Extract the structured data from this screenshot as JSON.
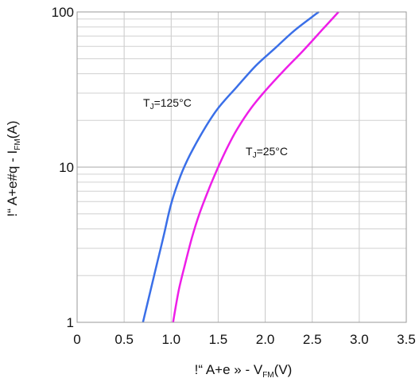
{
  "chart_data": {
    "type": "line",
    "x_scale": "linear",
    "y_scale": "log",
    "xlim": [
      0,
      3.5
    ],
    "ylim": [
      1,
      100
    ],
    "grid": true,
    "x_ticks": [
      "0",
      "0.5",
      "1.0",
      "1.5",
      "2.0",
      "2.5",
      "3.0",
      "3.5"
    ],
    "y_ticks": [
      "1",
      "10",
      "100"
    ],
    "xlabel": {
      "prefix": "!“   A+e » - ",
      "main": "V",
      "sub": "FM",
      "suffix": "(V)"
    },
    "ylabel": {
      "prefix": "!“   A+e#q - ",
      "main": "I",
      "sub": "FM",
      "suffix": "(A)"
    },
    "series": [
      {
        "name": "TJ=125°C",
        "label": {
          "main": "T",
          "sub": "J",
          "rest": "=125°C"
        },
        "color": "#3a6fe8",
        "x": [
          0.7,
          0.78,
          0.85,
          0.92,
          1.0,
          1.1,
          1.2,
          1.35,
          1.5,
          1.7,
          1.9,
          2.1,
          2.3,
          2.5,
          2.57
        ],
        "y": [
          1.0,
          1.6,
          2.4,
          3.6,
          5.8,
          8.8,
          12.0,
          17.5,
          24.0,
          33.0,
          45.0,
          58.0,
          75.0,
          93.0,
          100.0
        ]
      },
      {
        "name": "TJ=25°C",
        "label": {
          "main": "T",
          "sub": "J",
          "rest": "=25°C"
        },
        "color": "#ee1ee8",
        "x": [
          1.02,
          1.08,
          1.15,
          1.22,
          1.3,
          1.4,
          1.5,
          1.6,
          1.7,
          1.85,
          2.0,
          2.2,
          2.4,
          2.6,
          2.78
        ],
        "y": [
          1.0,
          1.6,
          2.4,
          3.5,
          5.0,
          7.2,
          10.0,
          13.5,
          17.5,
          24.0,
          31.0,
          42.0,
          56.0,
          76.0,
          100.0
        ]
      }
    ]
  }
}
